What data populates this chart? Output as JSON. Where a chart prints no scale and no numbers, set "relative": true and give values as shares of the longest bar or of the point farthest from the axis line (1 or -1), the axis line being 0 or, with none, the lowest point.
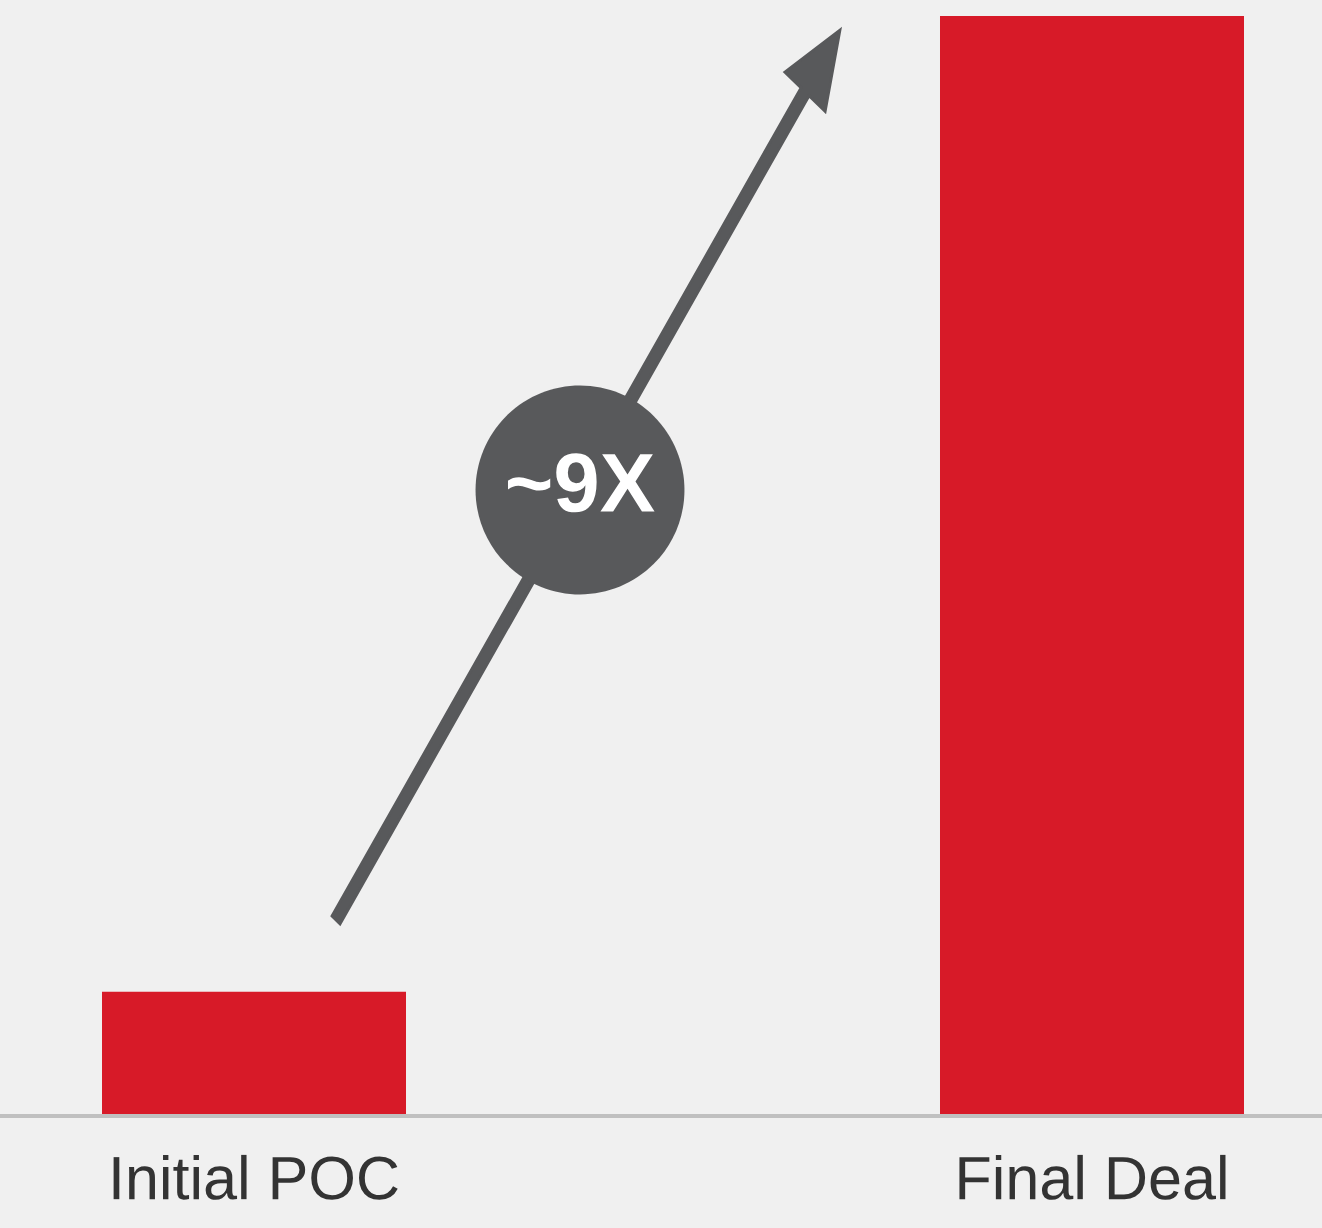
{
  "chart_data": {
    "type": "bar",
    "relative": true,
    "categories": [
      "Initial POC",
      "Final Deal"
    ],
    "values": [
      0.113,
      1
    ],
    "color": "#d71a28",
    "annotations": [
      "~9X"
    ],
    "grid": false,
    "legend": false
  }
}
